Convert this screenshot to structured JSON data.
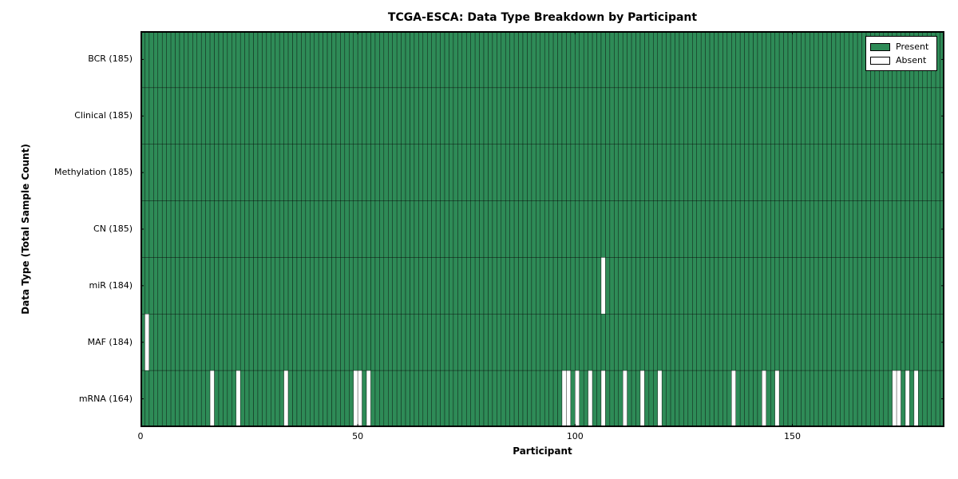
{
  "chart_data": {
    "type": "heatmap",
    "title": "TCGA-ESCA: Data Type Breakdown by Participant",
    "xlabel": "Participant",
    "ylabel": "Data Type (Total Sample Count)",
    "n_participants": 185,
    "xlim": [
      0,
      185
    ],
    "x_ticks": [
      0,
      50,
      100,
      150
    ],
    "grid": false,
    "legend": {
      "position": "upper right",
      "entries": [
        {
          "label": "Present",
          "color": "#2e8b57"
        },
        {
          "label": "Absent",
          "color": "#ffffff"
        }
      ]
    },
    "colors": {
      "present": "#2e8b57",
      "absent": "#ffffff",
      "cell_edge": "#000000",
      "axes_edge": "#000000"
    },
    "rows": [
      {
        "label": "BCR (185)",
        "data_type": "BCR",
        "present_count": 185,
        "absent_participants": []
      },
      {
        "label": "Clinical (185)",
        "data_type": "Clinical",
        "present_count": 185,
        "absent_participants": []
      },
      {
        "label": "Methylation (185)",
        "data_type": "Methylation",
        "present_count": 185,
        "absent_participants": []
      },
      {
        "label": "CN (185)",
        "data_type": "CN",
        "present_count": 185,
        "absent_participants": []
      },
      {
        "label": "miR (184)",
        "data_type": "miR",
        "present_count": 184,
        "absent_participants": [
          106
        ]
      },
      {
        "label": "MAF (184)",
        "data_type": "MAF",
        "present_count": 184,
        "absent_participants": [
          1
        ]
      },
      {
        "label": "mRNA (164)",
        "data_type": "mRNA",
        "present_count": 164,
        "absent_participants": [
          16,
          22,
          33,
          49,
          50,
          52,
          97,
          98,
          100,
          103,
          106,
          111,
          115,
          119,
          136,
          143,
          146,
          173,
          174,
          176,
          178
        ]
      }
    ]
  }
}
